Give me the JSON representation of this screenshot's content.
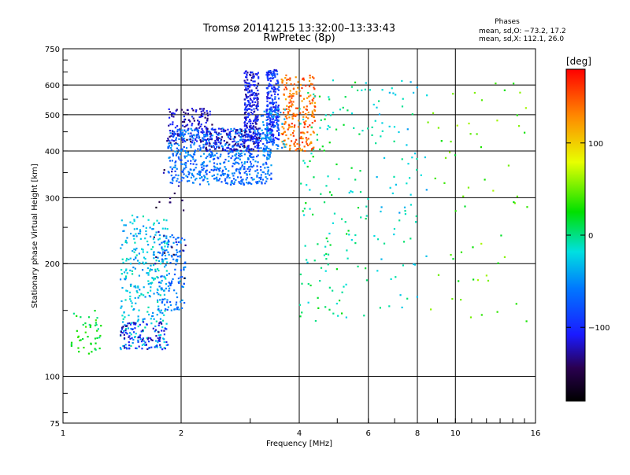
{
  "header": {
    "title_line1": "Tromsø 20141215 13:32:00–13:33:43",
    "title_line2": "RwPretec (8p)"
  },
  "phases_box": {
    "heading": "Phases",
    "line_o": "mean, sd,O: −73.2, 17.2",
    "line_x": "mean, sd,X: 112.1, 26.0"
  },
  "colorbar": {
    "unit_label": "[deg]",
    "tick_labels": [
      "100",
      "0",
      "−100"
    ],
    "tick_values": [
      100,
      0,
      -100
    ],
    "range": [
      -180,
      180
    ]
  },
  "chart_data": {
    "type": "scatter",
    "xlabel": "Frequency [MHz]",
    "ylabel": "Stationary phase Virtual Height [km]",
    "x_scale": "log",
    "y_scale": "log",
    "xlim": [
      1,
      16
    ],
    "ylim": [
      75,
      750
    ],
    "grid": true,
    "x_ticks": [
      1,
      2,
      4,
      6,
      8,
      10,
      16
    ],
    "x_tick_labels": [
      "1",
      "2",
      "4",
      "6",
      "8",
      "10",
      "16"
    ],
    "x_grid": [
      2,
      4,
      6,
      8,
      10
    ],
    "y_ticks": [
      75,
      100,
      200,
      300,
      400,
      500,
      600,
      750
    ],
    "y_tick_labels": [
      "75",
      "100",
      "200",
      "300",
      "400",
      "500",
      "600",
      "750"
    ],
    "y_grid": [
      100,
      200,
      300,
      400,
      500,
      600
    ],
    "color_variable": "phase [deg]",
    "clusters": [
      {
        "x": [
          1.05,
          1.25
        ],
        "y": [
          112,
          150
        ],
        "phase": 20,
        "n": 45
      },
      {
        "x": [
          1.4,
          1.85
        ],
        "y": [
          118,
          270
        ],
        "phase": -30,
        "n": 320
      },
      {
        "x": [
          1.4,
          1.85
        ],
        "y": [
          118,
          140
        ],
        "phase": -110,
        "n": 90
      },
      {
        "x": [
          1.75,
          2.05
        ],
        "y": [
          150,
          240
        ],
        "phase": -60,
        "n": 130
      },
      {
        "x": [
          1.7,
          2.1
        ],
        "y": [
          180,
          450
        ],
        "phase": -140,
        "n": 30
      },
      {
        "x": [
          1.85,
          2.4
        ],
        "y": [
          420,
          520
        ],
        "phase": -120,
        "n": 140
      },
      {
        "x": [
          1.85,
          3.4
        ],
        "y": [
          325,
          460
        ],
        "phase": -65,
        "n": 650
      },
      {
        "x": [
          2.3,
          3.2
        ],
        "y": [
          400,
          460
        ],
        "phase": -120,
        "n": 140
      },
      {
        "x": [
          2.9,
          3.15
        ],
        "y": [
          420,
          660
        ],
        "phase": -110,
        "n": 220
      },
      {
        "x": [
          3.3,
          3.55
        ],
        "y": [
          420,
          660
        ],
        "phase": -95,
        "n": 220
      },
      {
        "x": [
          3.6,
          4.4
        ],
        "y": [
          400,
          640
        ],
        "phase": 140,
        "n": 220
      },
      {
        "x": [
          3.2,
          3.7
        ],
        "y": [
          400,
          520
        ],
        "phase": -50,
        "n": 70
      },
      {
        "x": [
          4.0,
          6.0
        ],
        "y": [
          140,
          640
        ],
        "phase": 0,
        "n": 140
      },
      {
        "x": [
          6.0,
          8.5
        ],
        "y": [
          150,
          620
        ],
        "phase": -20,
        "n": 80
      },
      {
        "x": [
          8.5,
          15.5
        ],
        "y": [
          140,
          620
        ],
        "phase": 40,
        "n": 60
      }
    ]
  }
}
